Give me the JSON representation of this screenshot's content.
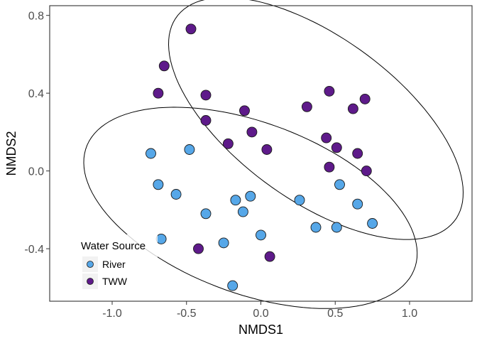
{
  "chart_data": {
    "type": "scatter",
    "xlabel": "NMDS1",
    "ylabel": "NMDS2",
    "xlim": [
      -1.42,
      1.42
    ],
    "ylim": [
      -0.67,
      0.85
    ],
    "x_ticks": [
      -1.0,
      -0.5,
      0.0,
      0.5,
      1.0
    ],
    "x_tick_labels": [
      "-1.0",
      "-0.5",
      "0.0",
      "0.5",
      "1.0"
    ],
    "y_ticks": [
      -0.4,
      0.0,
      0.4,
      0.8
    ],
    "y_tick_labels": [
      "-0.4",
      "0.0",
      "0.4",
      "0.8"
    ],
    "grid": false,
    "legend": {
      "title": "Water Source",
      "placement": "bottom-left-inside"
    },
    "series": [
      {
        "name": "River",
        "color": "#56a7e8",
        "points": [
          [
            -0.74,
            0.09
          ],
          [
            -0.48,
            0.11
          ],
          [
            -0.69,
            -0.07
          ],
          [
            -0.57,
            -0.12
          ],
          [
            -0.37,
            -0.22
          ],
          [
            -0.17,
            -0.15
          ],
          [
            -0.07,
            -0.13
          ],
          [
            -0.12,
            -0.21
          ],
          [
            -0.67,
            -0.35
          ],
          [
            -0.25,
            -0.37
          ],
          [
            0.0,
            -0.33
          ],
          [
            -0.19,
            -0.59
          ],
          [
            0.26,
            -0.15
          ],
          [
            0.37,
            -0.29
          ],
          [
            0.51,
            -0.29
          ],
          [
            0.53,
            -0.07
          ],
          [
            0.65,
            -0.17
          ],
          [
            0.75,
            -0.27
          ]
        ]
      },
      {
        "name": "TWW",
        "color": "#5e1a8a",
        "points": [
          [
            -0.47,
            0.73
          ],
          [
            -0.65,
            0.54
          ],
          [
            -0.69,
            0.4
          ],
          [
            -0.37,
            0.39
          ],
          [
            -0.37,
            0.26
          ],
          [
            -0.11,
            0.31
          ],
          [
            -0.06,
            0.2
          ],
          [
            -0.22,
            0.14
          ],
          [
            0.04,
            0.11
          ],
          [
            0.31,
            0.33
          ],
          [
            0.46,
            0.41
          ],
          [
            0.62,
            0.32
          ],
          [
            0.7,
            0.37
          ],
          [
            0.44,
            0.17
          ],
          [
            0.51,
            0.12
          ],
          [
            0.65,
            0.09
          ],
          [
            0.46,
            0.02
          ],
          [
            0.71,
            0.0
          ],
          [
            -0.42,
            -0.4
          ],
          [
            0.06,
            -0.44
          ]
        ]
      }
    ],
    "ellipses": [
      {
        "series": "TWW",
        "cx": 0.37,
        "cy": 0.27,
        "rx": 1.08,
        "ry": 0.45,
        "angle_deg": -26
      },
      {
        "series": "River",
        "cx": -0.07,
        "cy": -0.19,
        "rx": 1.15,
        "ry": 0.45,
        "angle_deg": -14
      }
    ]
  }
}
